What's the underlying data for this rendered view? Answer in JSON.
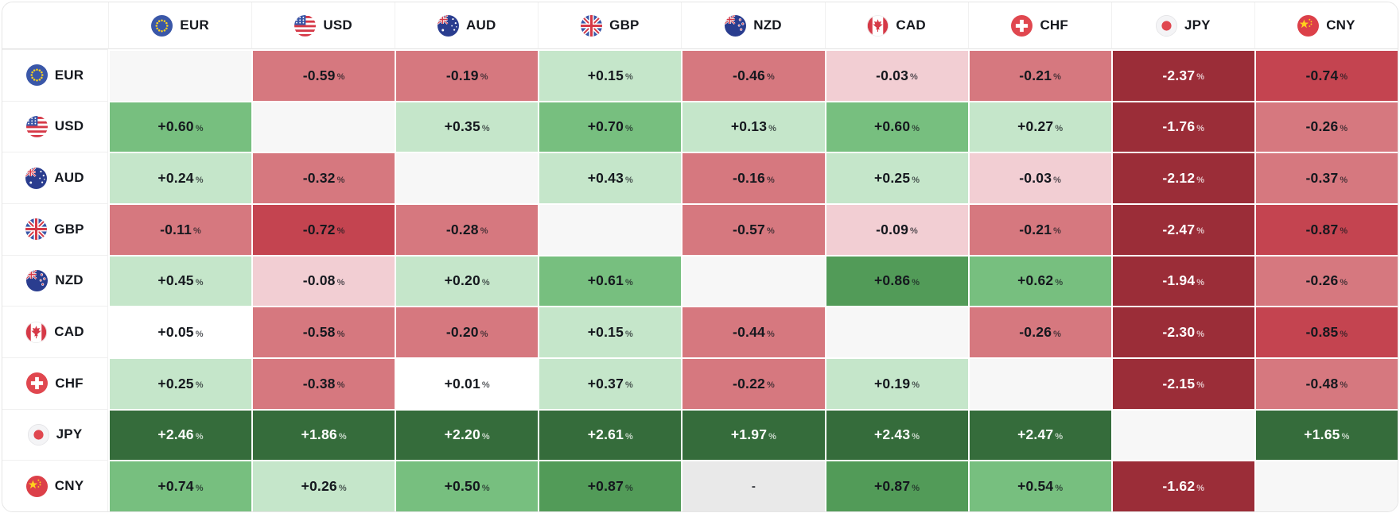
{
  "widget_title": "currency-strength-matrix",
  "chart_data": {
    "type": "heatmap",
    "columns": [
      "EUR",
      "USD",
      "AUD",
      "GBP",
      "NZD",
      "CAD",
      "CHF",
      "JPY",
      "CNY"
    ],
    "rows": [
      "EUR",
      "USD",
      "AUD",
      "GBP",
      "NZD",
      "CAD",
      "CHF",
      "JPY",
      "CNY"
    ],
    "values": [
      [
        null,
        -0.59,
        -0.19,
        0.15,
        -0.46,
        -0.03,
        -0.21,
        -2.37,
        -0.74
      ],
      [
        0.6,
        null,
        0.35,
        0.7,
        0.13,
        0.6,
        0.27,
        -1.76,
        -0.26
      ],
      [
        0.24,
        -0.32,
        null,
        0.43,
        -0.16,
        0.25,
        -0.03,
        -2.12,
        -0.37
      ],
      [
        -0.11,
        -0.72,
        -0.28,
        null,
        -0.57,
        -0.09,
        -0.21,
        -2.47,
        -0.87
      ],
      [
        0.45,
        -0.08,
        0.2,
        0.61,
        null,
        0.86,
        0.62,
        -1.94,
        -0.26
      ],
      [
        0.05,
        -0.58,
        -0.2,
        0.15,
        -0.44,
        null,
        -0.26,
        -2.3,
        -0.85
      ],
      [
        0.25,
        -0.38,
        0.01,
        0.37,
        -0.22,
        0.19,
        null,
        -2.15,
        -0.48
      ],
      [
        2.46,
        1.86,
        2.2,
        2.61,
        1.97,
        2.43,
        2.47,
        null,
        1.65
      ],
      [
        0.74,
        0.26,
        0.5,
        0.87,
        "-",
        0.87,
        0.54,
        -1.62,
        null
      ]
    ],
    "unit": "%",
    "na_symbol": "-",
    "legend_position": "none",
    "grid": false
  },
  "flag_icons": {
    "EUR": "eur-flag-icon",
    "USD": "usd-flag-icon",
    "AUD": "aud-flag-icon",
    "GBP": "gbp-flag-icon",
    "NZD": "nzd-flag-icon",
    "CAD": "cad-flag-icon",
    "CHF": "chf-flag-icon",
    "JPY": "jpy-flag-icon",
    "CNY": "cny-flag-icon"
  },
  "colors": {
    "diagonal_bg": "#f7f7f7",
    "na_bg": "#e9e9e9",
    "positive_scale": [
      "#ffffff",
      "#c5e6ca",
      "#77bf7f",
      "#529b58",
      "#356c3b"
    ],
    "negative_scale": [
      "#f2ced3",
      "#d6787f",
      "#c44450",
      "#9b2d38"
    ],
    "cell_text": "#15181e",
    "dark_cell_text": "#ffffff",
    "header_text": "#15181e",
    "border": "#e5e5e5"
  }
}
